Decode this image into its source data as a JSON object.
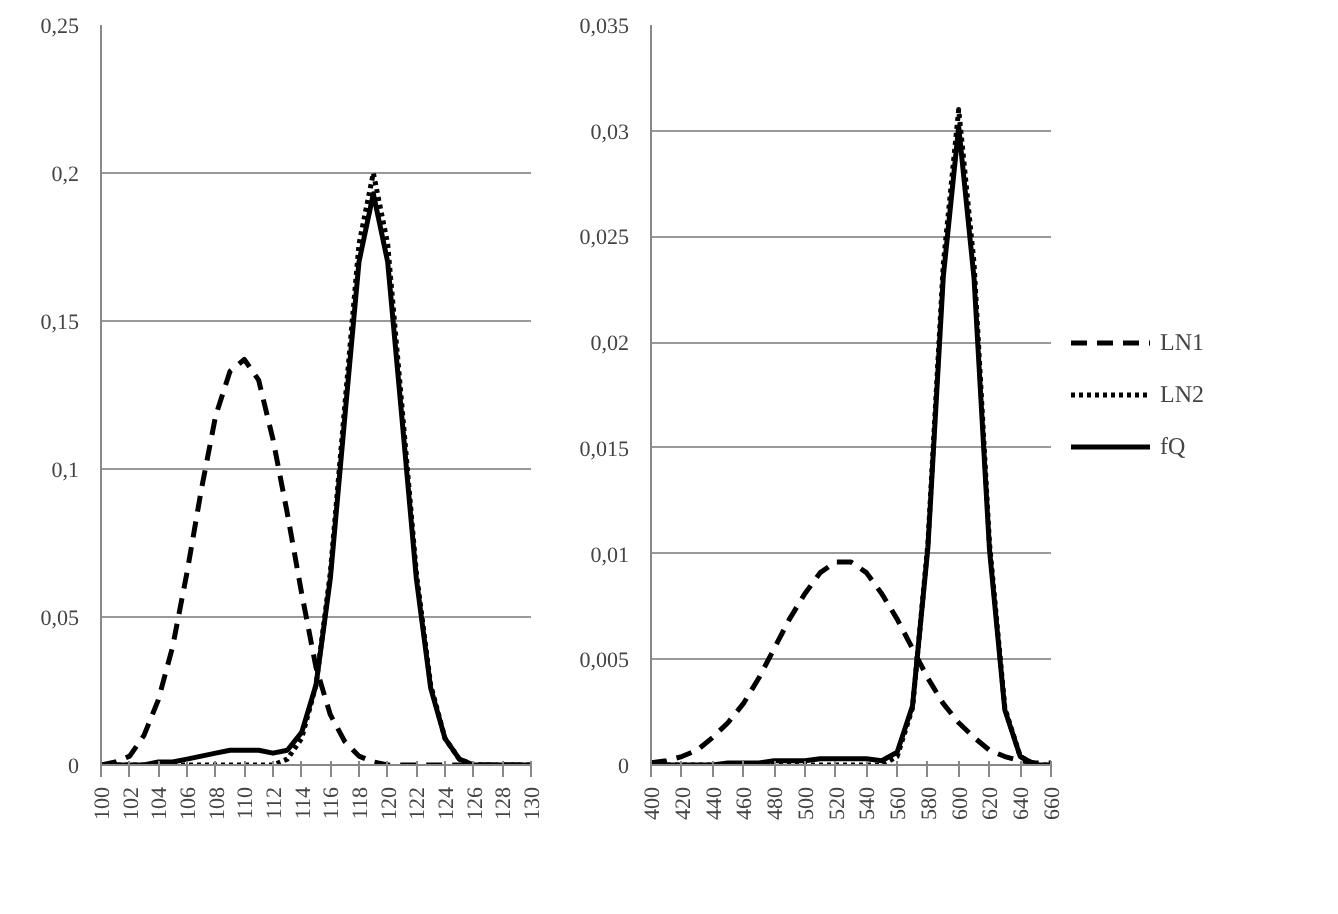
{
  "chart_data": [
    {
      "type": "line",
      "x": [
        100,
        101,
        102,
        103,
        104,
        105,
        106,
        107,
        108,
        109,
        110,
        111,
        112,
        113,
        114,
        115,
        116,
        117,
        118,
        119,
        120,
        121,
        122,
        123,
        124,
        125,
        126,
        127,
        128,
        129,
        130
      ],
      "series": [
        {
          "color": "#000000",
          "line_style": "dashed",
          "values": [
            0,
            0.001,
            0.003,
            0.01,
            0.022,
            0.04,
            0.065,
            0.093,
            0.118,
            0.133,
            0.137,
            0.13,
            0.11,
            0.085,
            0.058,
            0.033,
            0.017,
            0.008,
            0.003,
            0.001,
            0,
            0,
            0,
            0,
            0,
            0,
            0,
            0,
            0,
            0,
            0
          ]
        },
        {
          "color": "#000000",
          "line_style": "dotted",
          "values": [
            0,
            0,
            0,
            0,
            0,
            0,
            0,
            0,
            0,
            0,
            0,
            0,
            0,
            0.002,
            0.009,
            0.027,
            0.065,
            0.121,
            0.176,
            0.2,
            0.176,
            0.121,
            0.065,
            0.027,
            0.009,
            0.002,
            0,
            0,
            0,
            0,
            0
          ]
        },
        {
          "color": "#000000",
          "line_style": "solid",
          "values": [
            0,
            0,
            0,
            0,
            0.001,
            0.001,
            0.002,
            0.003,
            0.004,
            0.005,
            0.005,
            0.005,
            0.004,
            0.005,
            0.011,
            0.027,
            0.063,
            0.117,
            0.17,
            0.193,
            0.17,
            0.117,
            0.063,
            0.026,
            0.009,
            0.002,
            0,
            0,
            0,
            0,
            0
          ]
        }
      ],
      "xlim": [
        100,
        130
      ],
      "xticks": [
        100,
        102,
        104,
        106,
        108,
        110,
        112,
        114,
        116,
        118,
        120,
        122,
        124,
        126,
        128,
        130
      ],
      "ylim": [
        0,
        0.25
      ],
      "yticks": [
        0,
        {
          "value": 0.05,
          "label": "0,05"
        },
        {
          "value": 0.1,
          "label": "0,1"
        },
        {
          "value": 0.15,
          "label": "0,15"
        },
        {
          "value": 0.2,
          "label": "0,2"
        },
        {
          "value": 0.25,
          "label": "0,25"
        }
      ],
      "grid": "y"
    },
    {
      "type": "line",
      "x": [
        400,
        410,
        420,
        430,
        440,
        450,
        460,
        470,
        480,
        490,
        500,
        510,
        520,
        530,
        540,
        550,
        560,
        570,
        580,
        590,
        600,
        610,
        620,
        630,
        640,
        650,
        660
      ],
      "series": [
        {
          "name": "LN1",
          "color": "#000000",
          "line_style": "dashed",
          "values": [
            0.0001,
            0.0002,
            0.0004,
            0.0007,
            0.0013,
            0.002,
            0.0029,
            0.0041,
            0.0055,
            0.0069,
            0.0081,
            0.0091,
            0.0096,
            0.0096,
            0.0091,
            0.0081,
            0.0069,
            0.0055,
            0.0041,
            0.0029,
            0.002,
            0.0013,
            0.0007,
            0.0004,
            0.0002,
            0.0001,
            0.0001
          ]
        },
        {
          "name": "LN2",
          "color": "#000000",
          "line_style": "dotted",
          "values": [
            0,
            0,
            0,
            0,
            0,
            0,
            0,
            0,
            0,
            0,
            0,
            0,
            0,
            0,
            0,
            0,
            0.0004,
            0.0027,
            0.0105,
            0.0237,
            0.031,
            0.0237,
            0.0105,
            0.0027,
            0.0004,
            0,
            0
          ]
        },
        {
          "name": "fQ",
          "color": "#000000",
          "line_style": "solid",
          "values": [
            0,
            0,
            0,
            0,
            0,
            0.0001,
            0.0001,
            0.0001,
            0.0002,
            0.0002,
            0.0002,
            0.0003,
            0.0003,
            0.0003,
            0.0003,
            0.0002,
            0.0006,
            0.0028,
            0.0103,
            0.0231,
            0.0302,
            0.023,
            0.0102,
            0.0026,
            0.0004,
            0,
            0
          ]
        }
      ],
      "xlim": [
        400,
        660
      ],
      "xticks": [
        400,
        420,
        440,
        460,
        480,
        500,
        520,
        540,
        560,
        580,
        600,
        620,
        640,
        660
      ],
      "ylim": [
        0,
        0.035
      ],
      "yticks": [
        0,
        {
          "value": 0.005,
          "label": "0,005"
        },
        {
          "value": 0.01,
          "label": "0,01"
        },
        {
          "value": 0.015,
          "label": "0,015"
        },
        {
          "value": 0.02,
          "label": "0,02"
        },
        {
          "value": 0.025,
          "label": "0,025"
        },
        {
          "value": 0.03,
          "label": "0,03"
        },
        {
          "value": 0.035,
          "label": "0,035"
        }
      ],
      "grid": "y",
      "legend": "right"
    }
  ]
}
